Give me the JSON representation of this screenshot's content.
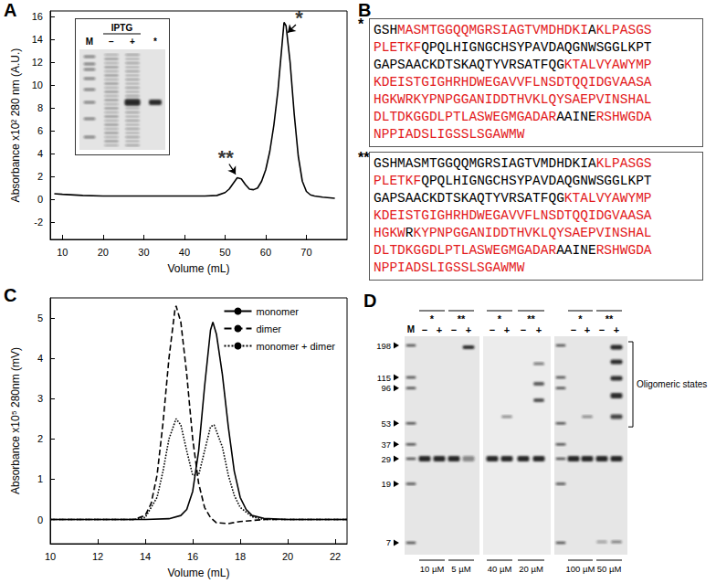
{
  "panel_labels": [
    "A",
    "B",
    "C",
    "D"
  ],
  "chart_data": [
    {
      "type": "line",
      "x_label": "Volume (mL)",
      "y_label": "Absorbance x10² 280 nm (A.U.)",
      "xlim": [
        7,
        80
      ],
      "xticks": [
        10,
        20,
        30,
        40,
        50,
        60,
        70
      ],
      "ylim": [
        -3.5,
        16.5
      ],
      "yticks": [
        -2,
        0,
        2,
        4,
        6,
        8,
        10,
        12,
        14,
        16
      ],
      "grid": false,
      "series": [
        {
          "color": "#000000",
          "line_style": "solid",
          "x": [
            8,
            10,
            15,
            20,
            25,
            30,
            35,
            40,
            45,
            48,
            50,
            51,
            52,
            53,
            54,
            55,
            56,
            57,
            58,
            59,
            60,
            61,
            62,
            63,
            64,
            64.5,
            65,
            66,
            67,
            68,
            69,
            70,
            71,
            72,
            74,
            77
          ],
          "values": [
            0.5,
            0.45,
            0.35,
            0.3,
            0.3,
            0.3,
            0.3,
            0.3,
            0.3,
            0.35,
            0.6,
            0.9,
            1.4,
            1.9,
            1.8,
            1.3,
            0.9,
            0.85,
            1.0,
            1.6,
            2.6,
            4.2,
            6.5,
            9.5,
            13.5,
            15.5,
            15.2,
            12.0,
            7.5,
            3.8,
            1.6,
            0.7,
            0.4,
            0.3,
            0.2,
            0.1
          ]
        }
      ],
      "annotations": [
        {
          "text": "*",
          "x": 68.2,
          "y": 15.9,
          "arrow_from": [
            67.4,
            15.3
          ],
          "arrow_to": [
            65.4,
            14.6
          ]
        },
        {
          "text": "**",
          "x": 50.2,
          "y": 3.7,
          "arrow_from": [
            51.0,
            3.1
          ],
          "arrow_to": [
            52.6,
            2.2
          ]
        }
      ]
    },
    {
      "type": "line",
      "x_label": "Volume (mL)",
      "y_label": "Absorbance x10⁵ 280nm (mV)",
      "xlim": [
        10,
        22.5
      ],
      "xticks": [
        10,
        12,
        14,
        16,
        18,
        20,
        22
      ],
      "ylim": [
        -0.6,
        5.5
      ],
      "yticks": [
        0,
        1,
        2,
        3,
        4,
        5
      ],
      "grid": false,
      "legend": "upper right",
      "series": [
        {
          "name": "monomer",
          "color": "#000000",
          "line_style": "solid",
          "x": [
            10,
            14,
            15,
            15.5,
            15.75,
            16,
            16.25,
            16.5,
            16.75,
            16.85,
            17,
            17.25,
            17.5,
            17.75,
            18,
            18.25,
            18.5,
            19,
            20,
            22.5
          ],
          "values": [
            0,
            0,
            0.02,
            0.1,
            0.25,
            0.7,
            1.7,
            3.3,
            4.7,
            4.9,
            4.6,
            3.6,
            2.3,
            1.2,
            0.55,
            0.25,
            0.1,
            0.03,
            0,
            0
          ]
        },
        {
          "name": "dimer",
          "color": "#000000",
          "line_style": "dashed",
          "x": [
            10,
            13.5,
            14,
            14.25,
            14.5,
            14.75,
            15,
            15.25,
            15.3,
            15.5,
            15.75,
            16,
            16.25,
            16.5,
            16.75,
            17,
            17.5,
            18,
            19,
            22.5
          ],
          "values": [
            0,
            0,
            0.1,
            0.4,
            1.1,
            2.4,
            4.0,
            5.2,
            5.3,
            4.9,
            3.6,
            2.0,
            0.9,
            0.3,
            0.05,
            -0.08,
            -0.1,
            -0.05,
            0,
            0
          ]
        },
        {
          "name": "monomer + dimer",
          "color": "#000000",
          "line_style": "dotted",
          "x": [
            10,
            13.5,
            14,
            14.5,
            14.75,
            15,
            15.3,
            15.5,
            15.75,
            16,
            16.25,
            16.5,
            16.75,
            16.9,
            17.25,
            17.5,
            17.75,
            18,
            18.5,
            19,
            22.5
          ],
          "values": [
            0,
            0,
            0.05,
            0.55,
            1.2,
            2.0,
            2.5,
            2.35,
            1.7,
            1.1,
            1.1,
            1.7,
            2.3,
            2.35,
            1.8,
            1.1,
            0.6,
            0.3,
            0.07,
            0,
            0
          ]
        }
      ]
    }
  ],
  "inset_gel_A": {
    "header": "IPTG",
    "lanes": [
      "M",
      "−",
      "+",
      "*"
    ]
  },
  "sequence_B": {
    "boxes": [
      {
        "label": "*",
        "lines": [
          [
            {
              "text": "GSH",
              "color": "#000000"
            },
            {
              "text": "MASMTGGQQMGRSIAGTVMDHDKI",
              "color": "#e31a1c"
            },
            {
              "text": "A",
              "color": "#000000"
            },
            {
              "text": "KLPASGS",
              "color": "#e31a1c"
            }
          ],
          [
            {
              "text": "PLETKF",
              "color": "#e31a1c"
            },
            {
              "text": "QPQLHIGNGCHSYPAVDAQGNWSGGLKPT",
              "color": "#000000"
            }
          ],
          [
            {
              "text": "GAPSAACKDTSKAQTYVRSATFQG",
              "color": "#000000"
            },
            {
              "text": "KTALVYAWYMP",
              "color": "#e31a1c"
            }
          ],
          [
            {
              "text": "KDEISTGIGHRHDWEGAVVFLNSDTQQIDGVAASA",
              "color": "#e31a1c"
            }
          ],
          [
            {
              "text": "HGKWRKYPNPGGANIDDTHVKLQYSAEPVINSHAL",
              "color": "#e31a1c"
            }
          ],
          [
            {
              "text": "DLTDKGGDLPTLASWEGMGADAR",
              "color": "#e31a1c"
            },
            {
              "text": "AAINE",
              "color": "#000000"
            },
            {
              "text": "RSHWGDA",
              "color": "#e31a1c"
            }
          ],
          [
            {
              "text": "NPPIADSLIGSSLSGAWMW",
              "color": "#e31a1c"
            }
          ]
        ]
      },
      {
        "label": "**",
        "lines": [
          [
            {
              "text": "GSHMASMTGGQQMGRSIAGTVMDHDKIA",
              "color": "#000000"
            },
            {
              "text": "KLPASGS",
              "color": "#e31a1c"
            }
          ],
          [
            {
              "text": "PLETKF",
              "color": "#e31a1c"
            },
            {
              "text": "QPQLHIGNGCHSYPAVDAQGNWSGGLKPT",
              "color": "#000000"
            }
          ],
          [
            {
              "text": "GAPSAACKDTSKAQTYVRSATFQG",
              "color": "#000000"
            },
            {
              "text": "KTALVYAWYMP",
              "color": "#e31a1c"
            }
          ],
          [
            {
              "text": "KDEISTGIGHRHDWEGAVVFLNSDTQQIDGVAASA",
              "color": "#e31a1c"
            }
          ],
          [
            {
              "text": "HGKW",
              "color": "#e31a1c"
            },
            {
              "text": "R",
              "color": "#000000"
            },
            {
              "text": "KYPNPGGANIDDTHVKLQYSAEPVINSHAL",
              "color": "#e31a1c"
            }
          ],
          [
            {
              "text": "DLTDKGGDLPTLASWEGMGADAR",
              "color": "#e31a1c"
            },
            {
              "text": "AAINE",
              "color": "#000000"
            },
            {
              "text": "RSHWGDA",
              "color": "#e31a1c"
            }
          ],
          [
            {
              "text": "NPPIADSLIGSSLSGAWMW",
              "color": "#e31a1c"
            }
          ]
        ]
      }
    ]
  },
  "gel_D": {
    "marker_label": "M",
    "markers": [
      198,
      115,
      96,
      53,
      37,
      29,
      19,
      7
    ],
    "gels": [
      {
        "groups": [
          {
            "label": "*",
            "lanes": [
              "−",
              "+"
            ],
            "concentration": "10 µM"
          },
          {
            "label": "**",
            "lanes": [
              "−",
              "+"
            ],
            "concentration": "5 µM"
          }
        ]
      },
      {
        "groups": [
          {
            "label": "*",
            "lanes": [
              "−",
              "+"
            ],
            "concentration": "40 µM"
          },
          {
            "label": "**",
            "lanes": [
              "−",
              "+"
            ],
            "concentration": "20 µM"
          }
        ]
      },
      {
        "groups": [
          {
            "label": "*",
            "lanes": [
              "−",
              "+"
            ],
            "concentration": "100 µM"
          },
          {
            "label": "**",
            "lanes": [
              "−",
              "+"
            ],
            "concentration": "50 µM"
          }
        ]
      }
    ],
    "bracket_label": "Oligomeric states"
  }
}
